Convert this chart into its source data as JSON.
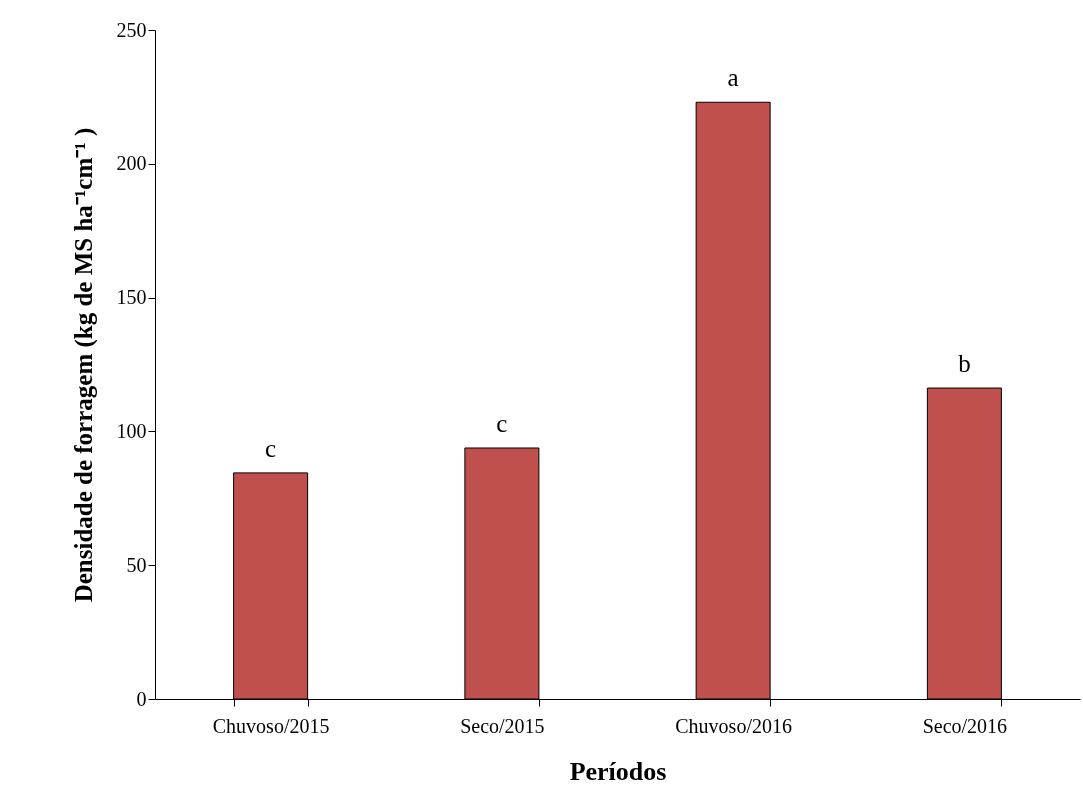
{
  "chart_data": {
    "type": "bar",
    "xlabel": "Períodos",
    "ylabel": "Densidade de forragem (kg de MS ha⁻¹cm⁻¹ )",
    "categories": [
      "Chuvoso/2015",
      "Seco/2015",
      "Chuvoso/2016",
      "Seco/2016"
    ],
    "values": [
      84.5,
      93.8,
      223,
      116.2
    ],
    "color": "#c0504d",
    "ylim": [
      0,
      250
    ],
    "yticks": [
      0,
      50,
      100,
      150,
      200,
      250
    ],
    "grid": false,
    "annotations": [
      {
        "text": "c",
        "x": "Chuvoso/2015",
        "y": 84.5
      },
      {
        "text": "c",
        "x": "Seco/2015",
        "y": 93.8
      },
      {
        "text": "a",
        "x": "Chuvoso/2016",
        "y": 223
      },
      {
        "text": "b",
        "x": "Seco/2016",
        "y": 116.2
      }
    ]
  }
}
